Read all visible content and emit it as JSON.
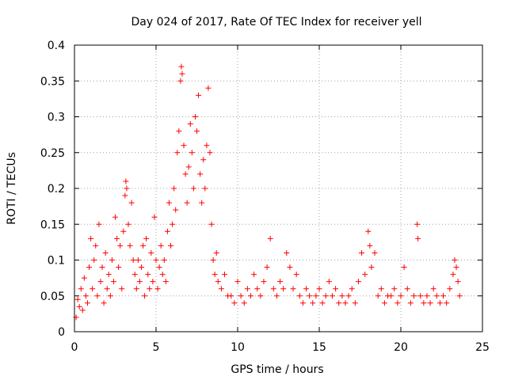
{
  "chart_data": {
    "type": "scatter",
    "title": "Day 024 of 2017, Rate Of TEC Index for receiver yell",
    "xlabel": "GPS time / hours",
    "ylabel": "ROTI / TECUs",
    "xlim": [
      0,
      25
    ],
    "ylim": [
      0,
      0.4
    ],
    "x_ticks": [
      0,
      5,
      10,
      15,
      20,
      25
    ],
    "x_tick_labels": [
      "0",
      "5",
      "10",
      "15",
      "20",
      "25"
    ],
    "y_ticks": [
      0,
      0.05,
      0.1,
      0.15,
      0.2,
      0.25,
      0.3,
      0.35,
      0.4
    ],
    "y_tick_labels": [
      "0",
      "0.05",
      "0.1",
      "0.15",
      "0.2",
      "0.25",
      "0.3",
      "0.35",
      "0.4"
    ],
    "grid": true,
    "marker": "+",
    "series": [
      {
        "name": "ROTI",
        "color": "#ff0000",
        "points": [
          [
            0.1,
            0.02
          ],
          [
            0.2,
            0.045
          ],
          [
            0.3,
            0.035
          ],
          [
            0.4,
            0.06
          ],
          [
            0.5,
            0.03
          ],
          [
            0.6,
            0.075
          ],
          [
            0.7,
            0.05
          ],
          [
            0.8,
            0.04
          ],
          [
            0.9,
            0.09
          ],
          [
            1.0,
            0.13
          ],
          [
            1.1,
            0.06
          ],
          [
            1.2,
            0.1
          ],
          [
            1.3,
            0.12
          ],
          [
            1.4,
            0.05
          ],
          [
            1.5,
            0.15
          ],
          [
            1.6,
            0.07
          ],
          [
            1.7,
            0.09
          ],
          [
            1.8,
            0.04
          ],
          [
            1.9,
            0.11
          ],
          [
            2.0,
            0.06
          ],
          [
            2.1,
            0.08
          ],
          [
            2.2,
            0.05
          ],
          [
            2.3,
            0.1
          ],
          [
            2.4,
            0.07
          ],
          [
            2.5,
            0.16
          ],
          [
            2.6,
            0.13
          ],
          [
            2.7,
            0.09
          ],
          [
            2.8,
            0.12
          ],
          [
            2.9,
            0.06
          ],
          [
            3.0,
            0.14
          ],
          [
            3.1,
            0.19
          ],
          [
            3.15,
            0.21
          ],
          [
            3.2,
            0.2
          ],
          [
            3.3,
            0.15
          ],
          [
            3.4,
            0.12
          ],
          [
            3.5,
            0.18
          ],
          [
            3.6,
            0.1
          ],
          [
            3.7,
            0.08
          ],
          [
            3.8,
            0.06
          ],
          [
            3.9,
            0.1
          ],
          [
            4.0,
            0.07
          ],
          [
            4.1,
            0.09
          ],
          [
            4.2,
            0.12
          ],
          [
            4.3,
            0.05
          ],
          [
            4.4,
            0.13
          ],
          [
            4.5,
            0.08
          ],
          [
            4.6,
            0.06
          ],
          [
            4.7,
            0.11
          ],
          [
            4.8,
            0.07
          ],
          [
            4.9,
            0.16
          ],
          [
            5.0,
            0.1
          ],
          [
            5.1,
            0.06
          ],
          [
            5.2,
            0.09
          ],
          [
            5.3,
            0.12
          ],
          [
            5.4,
            0.08
          ],
          [
            5.5,
            0.1
          ],
          [
            5.6,
            0.07
          ],
          [
            5.7,
            0.14
          ],
          [
            5.8,
            0.18
          ],
          [
            5.9,
            0.12
          ],
          [
            6.0,
            0.15
          ],
          [
            6.1,
            0.2
          ],
          [
            6.2,
            0.17
          ],
          [
            6.3,
            0.25
          ],
          [
            6.4,
            0.28
          ],
          [
            6.5,
            0.35
          ],
          [
            6.55,
            0.37
          ],
          [
            6.6,
            0.36
          ],
          [
            6.7,
            0.26
          ],
          [
            6.8,
            0.22
          ],
          [
            6.9,
            0.18
          ],
          [
            7.0,
            0.23
          ],
          [
            7.1,
            0.29
          ],
          [
            7.2,
            0.25
          ],
          [
            7.3,
            0.2
          ],
          [
            7.4,
            0.3
          ],
          [
            7.5,
            0.28
          ],
          [
            7.6,
            0.33
          ],
          [
            7.7,
            0.22
          ],
          [
            7.8,
            0.18
          ],
          [
            7.9,
            0.24
          ],
          [
            8.0,
            0.2
          ],
          [
            8.1,
            0.26
          ],
          [
            8.2,
            0.34
          ],
          [
            8.3,
            0.25
          ],
          [
            8.4,
            0.15
          ],
          [
            8.5,
            0.1
          ],
          [
            8.6,
            0.08
          ],
          [
            8.7,
            0.11
          ],
          [
            8.8,
            0.07
          ],
          [
            9.0,
            0.06
          ],
          [
            9.2,
            0.08
          ],
          [
            9.4,
            0.05
          ],
          [
            9.6,
            0.05
          ],
          [
            9.8,
            0.04
          ],
          [
            10.0,
            0.07
          ],
          [
            10.2,
            0.05
          ],
          [
            10.4,
            0.04
          ],
          [
            10.6,
            0.06
          ],
          [
            10.8,
            0.05
          ],
          [
            11.0,
            0.08
          ],
          [
            11.2,
            0.06
          ],
          [
            11.4,
            0.05
          ],
          [
            11.6,
            0.07
          ],
          [
            11.8,
            0.09
          ],
          [
            12.0,
            0.13
          ],
          [
            12.2,
            0.06
          ],
          [
            12.4,
            0.05
          ],
          [
            12.6,
            0.07
          ],
          [
            12.8,
            0.06
          ],
          [
            13.0,
            0.11
          ],
          [
            13.2,
            0.09
          ],
          [
            13.4,
            0.06
          ],
          [
            13.6,
            0.08
          ],
          [
            13.8,
            0.05
          ],
          [
            14.0,
            0.04
          ],
          [
            14.2,
            0.06
          ],
          [
            14.4,
            0.05
          ],
          [
            14.6,
            0.04
          ],
          [
            14.8,
            0.05
          ],
          [
            15.0,
            0.06
          ],
          [
            15.2,
            0.04
          ],
          [
            15.4,
            0.05
          ],
          [
            15.6,
            0.07
          ],
          [
            15.8,
            0.05
          ],
          [
            16.0,
            0.06
          ],
          [
            16.2,
            0.04
          ],
          [
            16.4,
            0.05
          ],
          [
            16.6,
            0.04
          ],
          [
            16.8,
            0.05
          ],
          [
            17.0,
            0.06
          ],
          [
            17.2,
            0.04
          ],
          [
            17.4,
            0.07
          ],
          [
            17.6,
            0.11
          ],
          [
            17.8,
            0.08
          ],
          [
            18.0,
            0.14
          ],
          [
            18.1,
            0.12
          ],
          [
            18.2,
            0.09
          ],
          [
            18.4,
            0.11
          ],
          [
            18.6,
            0.05
          ],
          [
            18.8,
            0.06
          ],
          [
            19.0,
            0.04
          ],
          [
            19.2,
            0.05
          ],
          [
            19.4,
            0.05
          ],
          [
            19.6,
            0.06
          ],
          [
            19.8,
            0.04
          ],
          [
            20.0,
            0.05
          ],
          [
            20.2,
            0.09
          ],
          [
            20.4,
            0.06
          ],
          [
            20.6,
            0.04
          ],
          [
            20.8,
            0.05
          ],
          [
            21.0,
            0.15
          ],
          [
            21.05,
            0.13
          ],
          [
            21.2,
            0.05
          ],
          [
            21.4,
            0.04
          ],
          [
            21.6,
            0.05
          ],
          [
            21.8,
            0.04
          ],
          [
            22.0,
            0.06
          ],
          [
            22.2,
            0.05
          ],
          [
            22.4,
            0.04
          ],
          [
            22.6,
            0.05
          ],
          [
            22.8,
            0.04
          ],
          [
            23.0,
            0.06
          ],
          [
            23.2,
            0.08
          ],
          [
            23.3,
            0.1
          ],
          [
            23.4,
            0.09
          ],
          [
            23.5,
            0.07
          ],
          [
            23.6,
            0.05
          ]
        ]
      }
    ]
  }
}
